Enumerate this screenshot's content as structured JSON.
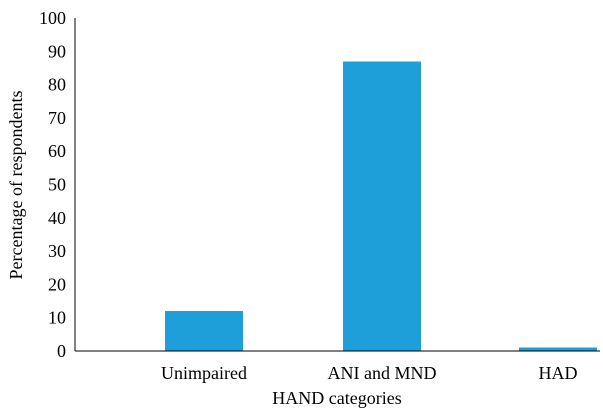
{
  "chart_data": {
    "type": "bar",
    "categories": [
      "Unimpaired",
      "ANI and MND",
      "HAD"
    ],
    "values": [
      12,
      87,
      1
    ],
    "xlabel": "HAND categories",
    "ylabel": "Percentage of respondents",
    "ylim": [
      0,
      100
    ],
    "yticks": [
      0,
      10,
      20,
      30,
      40,
      50,
      60,
      70,
      80,
      90,
      100
    ],
    "grid": false,
    "legend": "none",
    "bar_color": "#1f9fd9"
  }
}
